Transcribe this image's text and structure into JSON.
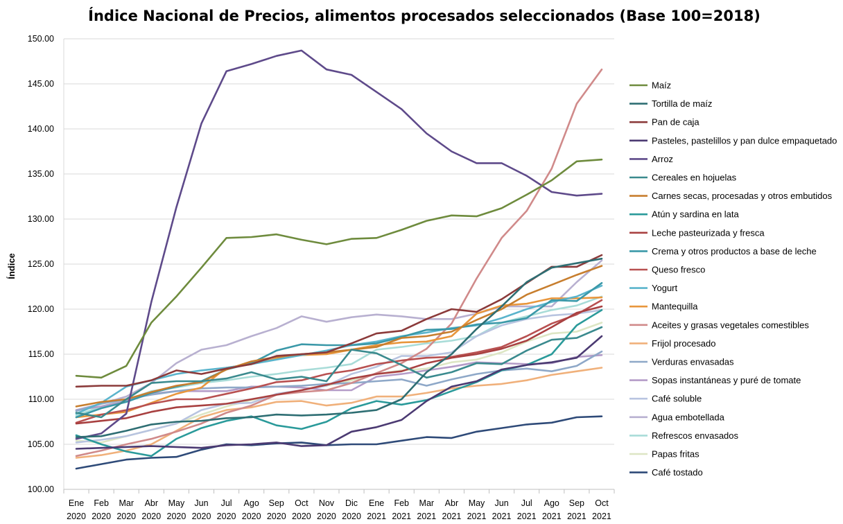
{
  "chart_data": {
    "type": "line",
    "title": "Índice Nacional de Precios, alimentos procesados seleccionados (Base 100=2018)",
    "ylabel": "Índice",
    "xlabel": "",
    "ylim": [
      100,
      150
    ],
    "yticks": [
      "100.00",
      "105.00",
      "110.00",
      "115.00",
      "120.00",
      "125.00",
      "130.00",
      "135.00",
      "140.00",
      "145.00",
      "150.00"
    ],
    "grid": true,
    "legend_position": "right",
    "categories": [
      [
        "Ene",
        "2020"
      ],
      [
        "Feb",
        "2020"
      ],
      [
        "Mar",
        "2020"
      ],
      [
        "Abr",
        "2020"
      ],
      [
        "May",
        "2020"
      ],
      [
        "Jun",
        "2020"
      ],
      [
        "Jul",
        "2020"
      ],
      [
        "Ago",
        "2020"
      ],
      [
        "Sep",
        "2020"
      ],
      [
        "Oct",
        "2020"
      ],
      [
        "Nov",
        "2020"
      ],
      [
        "Dic",
        "2020"
      ],
      [
        "Ene",
        "2021"
      ],
      [
        "Feb",
        "2021"
      ],
      [
        "Mar",
        "2021"
      ],
      [
        "Abr",
        "2021"
      ],
      [
        "May",
        "2021"
      ],
      [
        "Jun",
        "2021"
      ],
      [
        "Jul",
        "2021"
      ],
      [
        "Ago",
        "2021"
      ],
      [
        "Sep",
        "2021"
      ],
      [
        "Oct",
        "2021"
      ]
    ],
    "series": [
      {
        "name": "Maíz",
        "color": "#6e8b3d",
        "values": [
          112.6,
          112.4,
          113.7,
          118.5,
          121.4,
          124.6,
          127.9,
          128.0,
          128.3,
          127.7,
          127.2,
          127.8,
          127.9,
          128.8,
          129.8,
          130.4,
          130.3,
          131.2,
          132.7,
          134.3,
          136.4,
          136.6
        ]
      },
      {
        "name": "Tortilla de maíz",
        "color": "#2e6e73",
        "values": [
          105.8,
          105.9,
          106.5,
          107.2,
          107.5,
          107.6,
          107.9,
          108.0,
          108.3,
          108.2,
          108.3,
          108.5,
          108.8,
          110.0,
          113.0,
          115.0,
          117.8,
          120.3,
          123.0,
          124.6,
          125.1,
          125.6
        ]
      },
      {
        "name": "Pan de caja",
        "color": "#8b3a3a",
        "values": [
          111.4,
          111.5,
          111.5,
          112.1,
          113.2,
          112.8,
          113.4,
          113.9,
          114.8,
          115.0,
          115.2,
          116.2,
          117.3,
          117.6,
          118.9,
          120.0,
          119.7,
          121.1,
          122.9,
          124.7,
          124.7,
          126.0
        ]
      },
      {
        "name": "Pasteles, pastelillos y pan dulce empaquetado",
        "color": "#4b3a72",
        "values": [
          104.5,
          104.6,
          104.7,
          104.8,
          104.7,
          104.6,
          104.9,
          105.0,
          105.2,
          104.8,
          104.9,
          106.4,
          106.9,
          107.7,
          109.8,
          111.4,
          112.0,
          113.3,
          113.8,
          114.1,
          114.6,
          117.0
        ]
      },
      {
        "name": "Arroz",
        "color": "#5e4a8a",
        "values": [
          105.6,
          106.2,
          108.4,
          120.8,
          131.3,
          140.6,
          146.4,
          147.2,
          148.1,
          148.7,
          146.6,
          146.0,
          144.1,
          142.2,
          139.5,
          137.5,
          136.2,
          136.2,
          134.8,
          133.0,
          132.6,
          132.8
        ]
      },
      {
        "name": "Cereales en hojuelas",
        "color": "#3a8a8e",
        "values": [
          108.5,
          108.0,
          110.0,
          111.8,
          112.0,
          112.0,
          112.3,
          113.0,
          112.2,
          112.5,
          112.0,
          115.5,
          115.1,
          113.8,
          112.4,
          113.0,
          114.0,
          113.9,
          115.4,
          116.6,
          116.8,
          118.0
        ]
      },
      {
        "name": "Carnes secas, procesadas y otros embutidos",
        "color": "#c77e2e",
        "values": [
          109.2,
          109.7,
          110.0,
          110.8,
          111.5,
          111.9,
          113.3,
          114.2,
          114.7,
          115.0,
          115.2,
          115.5,
          115.8,
          116.8,
          117.0,
          117.5,
          118.8,
          120.0,
          121.6,
          122.7,
          123.8,
          124.8
        ]
      },
      {
        "name": "Atún y sardina en lata",
        "color": "#2a9a9a",
        "values": [
          106.0,
          105.0,
          104.2,
          103.7,
          105.6,
          106.8,
          107.6,
          108.1,
          107.1,
          106.7,
          107.5,
          109.0,
          109.8,
          109.4,
          109.9,
          110.9,
          111.9,
          113.2,
          113.8,
          115.0,
          118.2,
          119.9
        ]
      },
      {
        "name": "Leche pasteurizada y fresca",
        "color": "#a84040",
        "values": [
          107.3,
          107.6,
          107.9,
          108.6,
          109.1,
          109.3,
          109.5,
          110.0,
          110.5,
          111.0,
          111.6,
          112.3,
          112.8,
          113.1,
          114.0,
          114.6,
          115.0,
          115.6,
          116.5,
          118.0,
          119.6,
          120.3
        ]
      },
      {
        "name": "Crema y otros productos a base de leche",
        "color": "#3a98a8",
        "values": [
          108.0,
          109.0,
          109.7,
          110.7,
          111.4,
          112.0,
          113.3,
          114.0,
          115.4,
          116.1,
          116.0,
          116.0,
          116.2,
          116.9,
          117.7,
          117.8,
          118.3,
          118.5,
          119.0,
          121.0,
          120.9,
          122.9
        ]
      },
      {
        "name": "Queso fresco",
        "color": "#b85050",
        "values": [
          107.4,
          108.3,
          108.8,
          109.5,
          110.0,
          110.0,
          110.6,
          111.2,
          111.9,
          112.1,
          112.8,
          113.2,
          113.9,
          114.3,
          114.6,
          114.7,
          115.2,
          115.8,
          117.0,
          118.4,
          119.4,
          121.0
        ]
      },
      {
        "name": "Yogurt",
        "color": "#5ab4cc",
        "values": [
          108.4,
          109.6,
          111.4,
          112.1,
          112.8,
          113.2,
          113.5,
          113.9,
          114.4,
          114.9,
          115.4,
          116.0,
          116.4,
          117.0,
          117.4,
          117.9,
          118.2,
          119.0,
          120.0,
          120.8,
          121.4,
          122.6
        ]
      },
      {
        "name": "Mantequilla",
        "color": "#e8963c",
        "values": [
          108.0,
          108.3,
          108.6,
          109.6,
          110.6,
          111.3,
          113.5,
          113.9,
          114.5,
          114.9,
          115.0,
          115.5,
          116.0,
          116.3,
          116.4,
          117.0,
          119.5,
          120.4,
          120.6,
          121.2,
          121.2,
          121.3
        ]
      },
      {
        "name": "Aceites y grasas vegetales comestibles",
        "color": "#d08a8a",
        "values": [
          103.7,
          104.3,
          105.0,
          105.6,
          106.4,
          107.3,
          108.5,
          109.3,
          110.5,
          110.8,
          111.0,
          111.8,
          112.9,
          114.0,
          115.6,
          118.4,
          123.4,
          127.9,
          130.9,
          135.6,
          142.8,
          146.6
        ]
      },
      {
        "name": "Frijol procesado",
        "color": "#f0b07a",
        "values": [
          103.5,
          103.8,
          104.3,
          105.0,
          106.5,
          108.0,
          108.8,
          109.1,
          109.7,
          109.8,
          109.3,
          109.6,
          110.3,
          110.3,
          110.7,
          111.2,
          111.5,
          111.7,
          112.1,
          112.7,
          113.1,
          113.5
        ]
      },
      {
        "name": "Verduras envasadas",
        "color": "#8ea8c8",
        "values": [
          108.7,
          109.5,
          110.0,
          110.5,
          110.9,
          111.2,
          111.3,
          111.3,
          111.4,
          111.5,
          111.7,
          111.8,
          112.0,
          112.2,
          111.5,
          112.2,
          112.8,
          113.2,
          113.4,
          113.1,
          113.7,
          115.3
        ]
      },
      {
        "name": "Sopas instantáneas y puré de tomate",
        "color": "#b49cc8",
        "values": [
          108.8,
          109.2,
          109.8,
          110.6,
          110.9,
          110.9,
          110.9,
          111.4,
          111.4,
          111.3,
          111.0,
          111.0,
          112.5,
          112.8,
          113.2,
          113.6,
          114.1,
          114.0,
          113.9,
          114.0,
          114.7,
          114.9
        ]
      },
      {
        "name": "Café soluble",
        "color": "#b8c4e0",
        "values": [
          105.2,
          105.5,
          105.9,
          106.6,
          107.3,
          108.8,
          109.5,
          109.6,
          110.6,
          111.0,
          111.5,
          112.8,
          113.6,
          114.8,
          114.8,
          115.2,
          117.0,
          118.2,
          118.9,
          119.3,
          119.5,
          119.9
        ]
      },
      {
        "name": "Agua embotellada",
        "color": "#b8b0d0",
        "values": [
          108.8,
          109.5,
          110.3,
          111.8,
          114.0,
          115.5,
          116.0,
          117.0,
          117.9,
          119.2,
          118.6,
          119.1,
          119.4,
          119.2,
          118.9,
          118.9,
          119.5,
          120.3,
          120.3,
          120.3,
          123.0,
          125.4
        ]
      },
      {
        "name": "Refrescos envasados",
        "color": "#a8dcd8",
        "values": [
          108.2,
          109.2,
          109.9,
          110.9,
          111.3,
          111.8,
          112.1,
          112.5,
          112.8,
          113.2,
          113.5,
          113.9,
          115.5,
          115.8,
          116.2,
          116.5,
          117.0,
          118.5,
          119.2,
          119.9,
          120.4,
          121.4
        ]
      },
      {
        "name": "Papas fritas",
        "color": "#dde6c4",
        "values": [
          105.4,
          105.2,
          105.9,
          106.6,
          107.3,
          108.3,
          109.2,
          109.9,
          110.5,
          111.0,
          111.5,
          112.1,
          112.8,
          113.2,
          113.4,
          114.1,
          114.4,
          115.2,
          116.4,
          117.3,
          117.5,
          118.5
        ]
      },
      {
        "name": "Café tostado",
        "color": "#2e4a78",
        "values": [
          102.3,
          102.8,
          103.3,
          103.5,
          103.6,
          104.4,
          105.0,
          104.9,
          105.1,
          105.2,
          104.9,
          105.0,
          105.0,
          105.4,
          105.8,
          105.7,
          106.4,
          106.8,
          107.2,
          107.4,
          108.0,
          108.1
        ]
      }
    ]
  }
}
